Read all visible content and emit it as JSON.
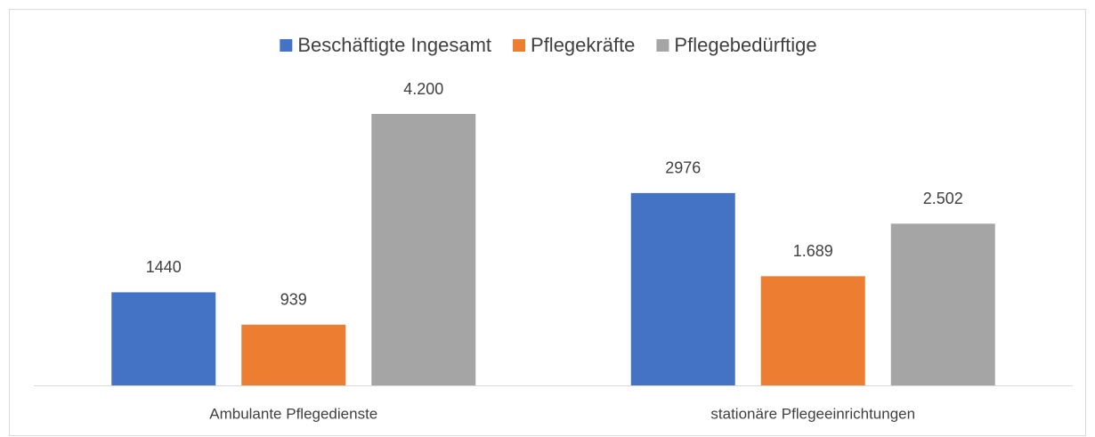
{
  "chart_data": {
    "type": "bar",
    "categories": [
      "Ambulante Pflegedienste",
      "stationäre Pflegeeinrichtungen"
    ],
    "series": [
      {
        "name": "Beschäftigte Ingesamt",
        "color": "#4472c4",
        "values": [
          1440,
          2976
        ]
      },
      {
        "name": "Pflegekräfte",
        "color": "#ed7d31",
        "values": [
          939,
          1689
        ],
        "value_labels": [
          "939",
          "1.689"
        ]
      },
      {
        "name": "Pflegebedürftige",
        "color": "#a5a5a5",
        "values": [
          4200,
          2502
        ],
        "value_labels": [
          "4.200",
          "2.502"
        ]
      }
    ],
    "legend": "top"
  }
}
